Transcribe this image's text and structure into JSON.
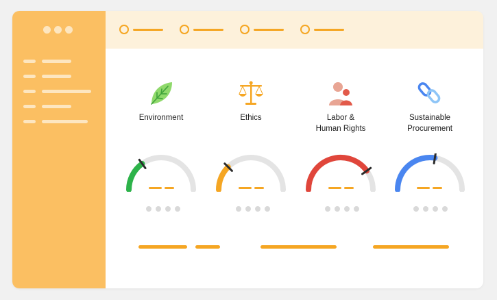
{
  "colors": {
    "sidebar": "#fbbf62",
    "accent": "#f5a623",
    "track": "#e4e4e4",
    "topbar": "#fdf1db"
  },
  "window_controls": [
    "dot",
    "dot",
    "dot"
  ],
  "sidebar_nav": [
    {
      "icon": "nav-bullet"
    },
    {
      "icon": "nav-bullet"
    },
    {
      "icon": "nav-bullet"
    },
    {
      "icon": "nav-bullet"
    },
    {
      "icon": "nav-bullet"
    }
  ],
  "steps": [
    {
      "state": "step"
    },
    {
      "state": "step"
    },
    {
      "state": "step"
    },
    {
      "state": "step"
    }
  ],
  "categories": [
    {
      "label": "Environment",
      "icon": "leaf-icon",
      "gauge_color": "#2db34a",
      "gauge_value": 0.3
    },
    {
      "label": "Ethics",
      "icon": "scales-icon",
      "gauge_color": "#f5a623",
      "gauge_value": 0.25
    },
    {
      "label": "Labor &\nHuman Rights",
      "icon": "people-icon",
      "gauge_color": "#e0463b",
      "gauge_value": 0.8
    },
    {
      "label": "Sustainable\nProcurement",
      "icon": "chain-link-icon",
      "gauge_color": "#4a86f0",
      "gauge_value": 0.55
    }
  ],
  "pager_dots": 4
}
